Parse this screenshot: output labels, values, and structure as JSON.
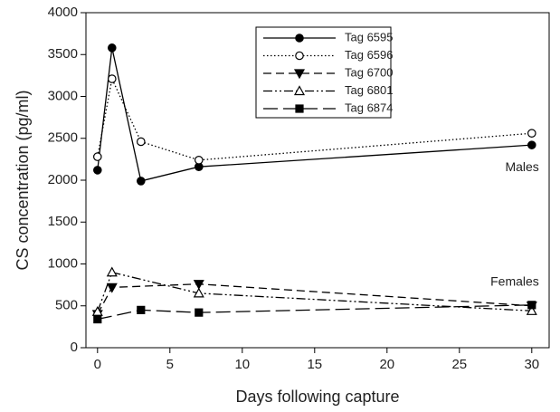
{
  "chart_data": {
    "type": "line",
    "y_label": "CS concentration (pg/ml)",
    "x_label": "Days following capture",
    "xlim": [
      -0.8,
      31.2
    ],
    "xticks": [
      0,
      5,
      10,
      15,
      20,
      25,
      30
    ],
    "ylim": [
      0,
      4000
    ],
    "yticks": [
      0,
      500,
      1000,
      1500,
      2000,
      2500,
      3000,
      3500,
      4000
    ],
    "grid": false,
    "legend": "top-center",
    "series": [
      {
        "name": "Tag 6595",
        "color": "#000000",
        "line_style": "solid",
        "marker": "filled-circle",
        "x": [
          0,
          1,
          3,
          7,
          30
        ],
        "values": [
          2120,
          3580,
          1990,
          2160,
          2420
        ]
      },
      {
        "name": "Tag 6596",
        "color": "#000000",
        "line_style": "dotted",
        "marker": "open-circle",
        "x": [
          0,
          1,
          3,
          7,
          30
        ],
        "values": [
          2280,
          3210,
          2460,
          2240,
          2560
        ]
      },
      {
        "name": "Tag 6700",
        "color": "#000000",
        "line_style": "dashed",
        "marker": "filled-triangle-down",
        "x": [
          0,
          1,
          7,
          30
        ],
        "values": [
          400,
          720,
          760,
          500
        ]
      },
      {
        "name": "Tag 6801",
        "color": "#000000",
        "line_style": "dash-dot-dot",
        "marker": "open-triangle-up",
        "x": [
          0,
          1,
          7,
          30
        ],
        "values": [
          430,
          900,
          650,
          440
        ]
      },
      {
        "name": "Tag 6874",
        "color": "#000000",
        "line_style": "long-dash",
        "marker": "filled-square",
        "x": [
          0,
          3,
          7,
          30
        ],
        "values": [
          340,
          450,
          420,
          510
        ]
      }
    ],
    "annotations": [
      "Males",
      "Females"
    ]
  }
}
